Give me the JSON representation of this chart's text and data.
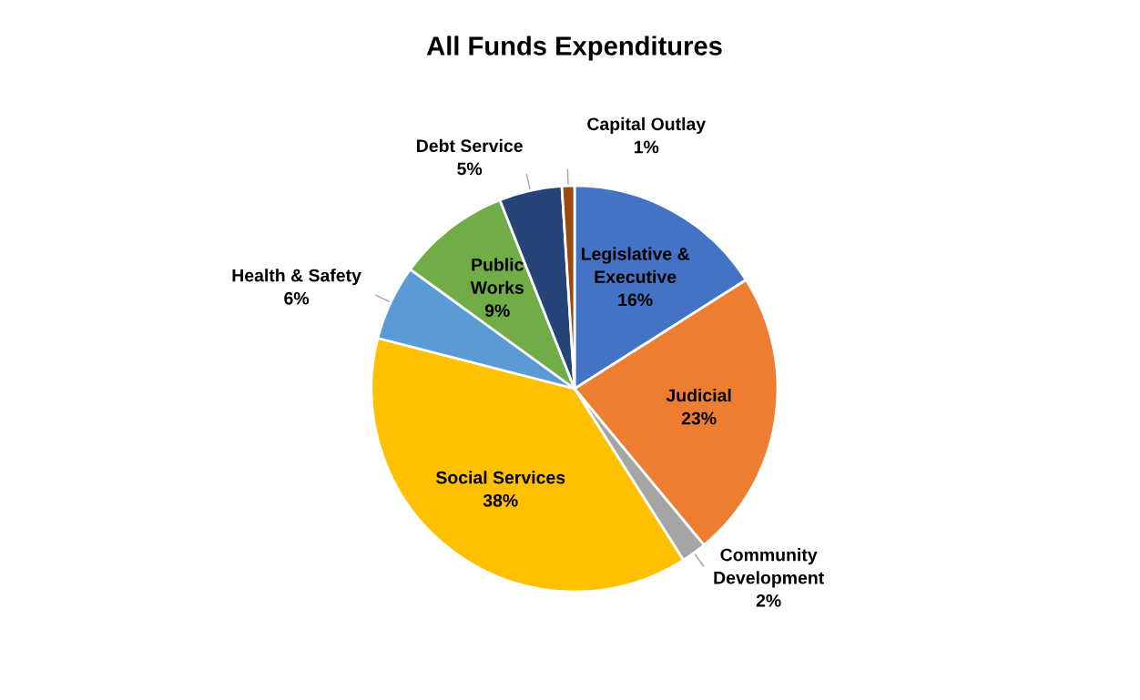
{
  "chart_data": {
    "type": "pie",
    "title": "All Funds Expenditures",
    "categories": [
      "Legislative &\nExecutive",
      "Judicial",
      "Community\nDevelopment",
      "Social Services",
      "Health & Safety",
      "Public\nWorks",
      "Debt Service",
      "Capital Outlay"
    ],
    "values": [
      16,
      23,
      2,
      38,
      6,
      9,
      5,
      1
    ],
    "value_labels": [
      "16%",
      "23%",
      "2%",
      "38%",
      "6%",
      "9%",
      "5%",
      "1%"
    ],
    "colors": [
      "#4472c4",
      "#ed7d31",
      "#a5a5a5",
      "#ffc000",
      "#5b9bd5",
      "#70ad47",
      "#264478",
      "#9e480e"
    ],
    "legend": false
  }
}
